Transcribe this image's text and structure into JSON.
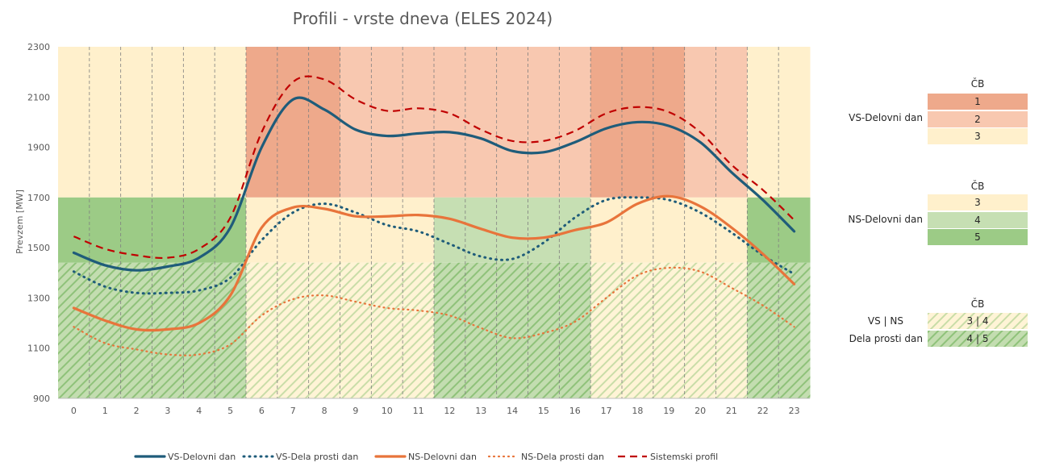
{
  "chart_data": {
    "type": "line",
    "title": "Profili - vrste dneva (ELES 2024)",
    "ylabel": "Prevzem [MW]",
    "xlabel": "",
    "ylim": [
      900,
      2300
    ],
    "yticks": [
      900,
      1100,
      1300,
      1500,
      1700,
      1900,
      2100,
      2300
    ],
    "x": [
      0,
      1,
      2,
      3,
      4,
      5,
      6,
      7,
      8,
      9,
      10,
      11,
      12,
      13,
      14,
      15,
      16,
      17,
      18,
      19,
      20,
      21,
      22,
      23
    ],
    "grid": "vertical dashed",
    "legend_position": "bottom",
    "series": [
      {
        "name": "VS-Delovni dan",
        "style": "solid-thick",
        "color": "#1F5C7A",
        "values": [
          1480,
          1430,
          1410,
          1425,
          1460,
          1580,
          1900,
          2090,
          2050,
          1970,
          1945,
          1955,
          1960,
          1935,
          1885,
          1880,
          1920,
          1975,
          2000,
          1985,
          1920,
          1800,
          1690,
          1565
        ]
      },
      {
        "name": "VS-Dela prosti dan",
        "style": "dotted",
        "color": "#1F5C7A",
        "values": [
          1405,
          1345,
          1320,
          1320,
          1330,
          1380,
          1530,
          1640,
          1675,
          1640,
          1590,
          1565,
          1515,
          1465,
          1455,
          1520,
          1620,
          1690,
          1700,
          1690,
          1640,
          1560,
          1470,
          1395
        ]
      },
      {
        "name": "NS-Delovni dan",
        "style": "solid-thick",
        "color": "#E8743B",
        "values": [
          1260,
          1210,
          1175,
          1175,
          1200,
          1310,
          1580,
          1660,
          1655,
          1625,
          1625,
          1630,
          1615,
          1575,
          1540,
          1540,
          1570,
          1600,
          1675,
          1705,
          1665,
          1580,
          1475,
          1355
        ]
      },
      {
        "name": "NS-Dela prosti dan",
        "style": "dotted",
        "color": "#E8743B",
        "values": [
          1185,
          1120,
          1095,
          1075,
          1075,
          1115,
          1230,
          1295,
          1310,
          1285,
          1260,
          1250,
          1230,
          1180,
          1140,
          1160,
          1205,
          1300,
          1390,
          1420,
          1405,
          1340,
          1270,
          1185
        ]
      },
      {
        "name": "Sistemski profil",
        "style": "dashed",
        "color": "#C00000",
        "values": [
          1545,
          1495,
          1470,
          1460,
          1495,
          1620,
          1960,
          2160,
          2170,
          2090,
          2045,
          2055,
          2035,
          1970,
          1925,
          1925,
          1965,
          2035,
          2060,
          2040,
          1960,
          1830,
          1730,
          1610
        ]
      }
    ],
    "bands": {
      "VS": {
        "hours_cb": [
          3,
          3,
          3,
          3,
          3,
          3,
          1,
          1,
          1,
          2,
          2,
          2,
          2,
          2,
          2,
          2,
          2,
          1,
          1,
          1,
          2,
          2,
          3,
          3
        ],
        "range": [
          1700,
          2300
        ]
      },
      "NS": {
        "hours_cb": [
          5,
          5,
          5,
          5,
          5,
          5,
          3,
          3,
          3,
          3,
          3,
          3,
          4,
          4,
          4,
          4,
          4,
          3,
          3,
          3,
          3,
          3,
          5,
          5
        ],
        "range": [
          1440,
          1700
        ]
      },
      "DPD": {
        "hours_cb": [
          "4|5",
          "4|5",
          "4|5",
          "4|5",
          "4|5",
          "4|5",
          "3|4",
          "3|4",
          "3|4",
          "3|4",
          "3|4",
          "3|4",
          "4|5",
          "4|5",
          "4|5",
          "4|5",
          "4|5",
          "3|4",
          "3|4",
          "3|4",
          "3|4",
          "3|4",
          "4|5",
          "4|5"
        ],
        "range": [
          900,
          1440
        ]
      }
    }
  },
  "colors": {
    "cb1": "#EEA98B",
    "cb2": "#F8C8B0",
    "cb3": "#FFF0CC",
    "cb4": "#C6DFB3",
    "cb5": "#9CCB86"
  },
  "side_panel": {
    "group1": {
      "header": "ČB",
      "label": "VS-Delovni dan",
      "cells": [
        "1",
        "2",
        "3"
      ]
    },
    "group2": {
      "header": "ČB",
      "label": "NS-Delovni dan",
      "cells": [
        "3",
        "4",
        "5"
      ]
    },
    "group3": {
      "header": "ČB",
      "label_line1": "VS | NS",
      "label_line2": "Dela prosti dan",
      "cells": [
        "3 | 4",
        "4 | 5"
      ]
    }
  }
}
